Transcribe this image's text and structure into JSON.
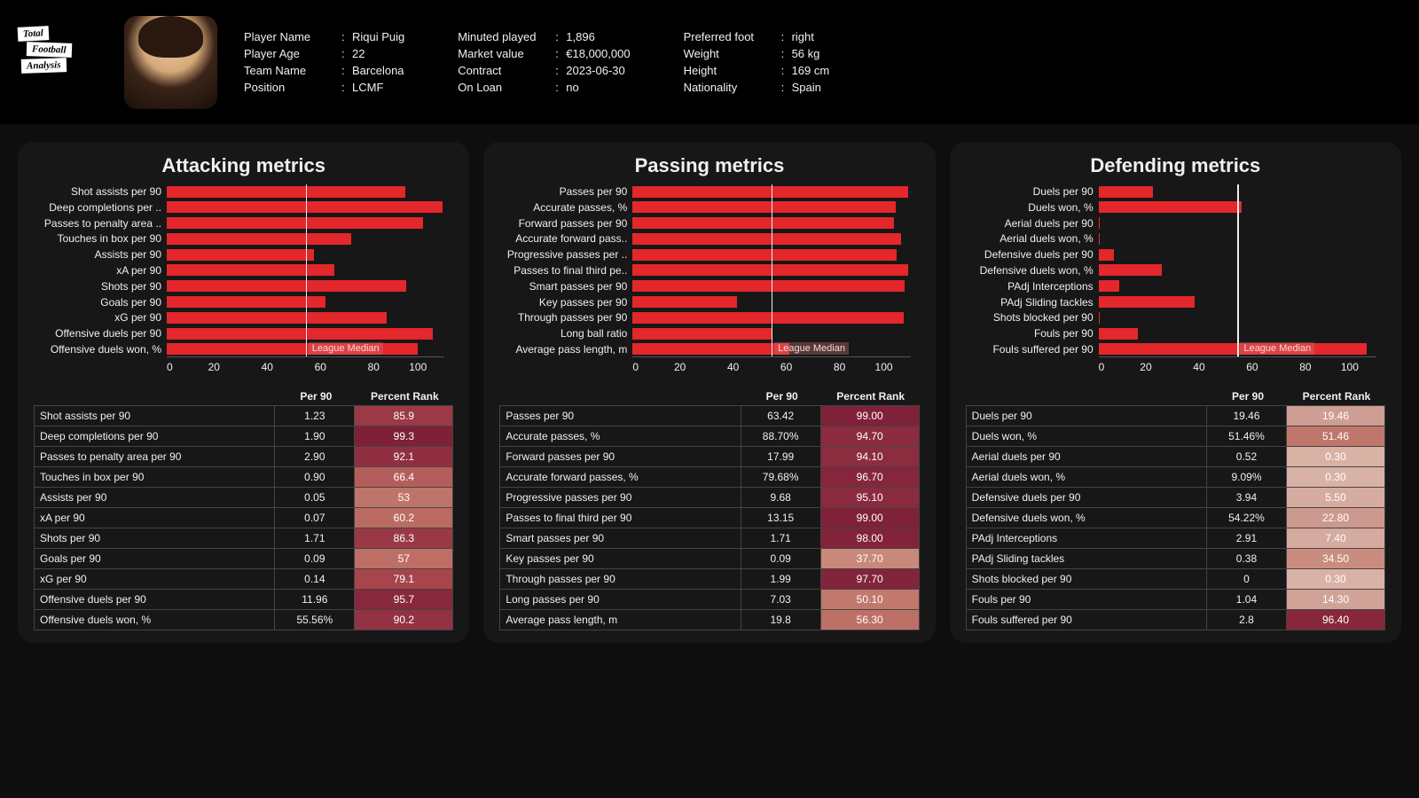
{
  "logo": {
    "w1": "Total",
    "w2": "Football",
    "w3": "Analysis"
  },
  "info": {
    "c1": [
      {
        "label": "Player Name",
        "val": "Riqui Puig"
      },
      {
        "label": "Player Age",
        "val": "22"
      },
      {
        "label": "Team Name",
        "val": "Barcelona"
      },
      {
        "label": "Position",
        "val": "LCMF"
      }
    ],
    "c2": [
      {
        "label": "Minuted played",
        "val": "1,896"
      },
      {
        "label": "Market value",
        "val": "€18,000,000"
      },
      {
        "label": "Contract",
        "val": "2023-06-30"
      },
      {
        "label": "On Loan",
        "val": "no"
      }
    ],
    "c3": [
      {
        "label": "Preferred foot",
        "val": "right"
      },
      {
        "label": "Weight",
        "val": "56 kg"
      },
      {
        "label": "Height",
        "val": "169 cm"
      },
      {
        "label": "Nationality",
        "val": "Spain"
      }
    ]
  },
  "chart_common": {
    "bar_color": "#e3272b",
    "median_line_color": "#eeeeee",
    "median_label": "League Median",
    "median_value": 50,
    "xlim": [
      0,
      100
    ],
    "xticks": [
      0,
      20,
      40,
      60,
      80,
      100
    ],
    "background": "#171717",
    "text_color": "#f0f0f0",
    "grid_border": "#444444"
  },
  "rank_color_scale": {
    "0": "#d9b2a6",
    "20": "#ce9c92",
    "40": "#c78678",
    "60": "#bb6b62",
    "80": "#a6434b",
    "95": "#8a2a3e",
    "100": "#7c1f37"
  },
  "table_headers": {
    "metric": "",
    "per90": "Per 90",
    "rank": "Percent Rank"
  },
  "panels": [
    {
      "title": "Attacking metrics",
      "median_label_left_pct": 51,
      "bars": [
        {
          "label": "Shot assists per 90",
          "val": 85.9
        },
        {
          "label": "Deep completions per ..",
          "val": 99.3
        },
        {
          "label": "Passes to penalty area ..",
          "val": 92.1
        },
        {
          "label": "Touches in box per 90",
          "val": 66.4
        },
        {
          "label": "Assists per 90",
          "val": 53
        },
        {
          "label": "xA per 90",
          "val": 60.2
        },
        {
          "label": "Shots per 90",
          "val": 86.3
        },
        {
          "label": "Goals per 90",
          "val": 57
        },
        {
          "label": "xG per 90",
          "val": 79.1
        },
        {
          "label": "Offensive duels per 90",
          "val": 95.7
        },
        {
          "label": "Offensive duels won, %",
          "val": 90.2
        }
      ],
      "rows": [
        {
          "metric": "Shot assists per 90",
          "per90": "1.23",
          "rank": "85.9"
        },
        {
          "metric": "Deep completions per 90",
          "per90": "1.90",
          "rank": "99.3"
        },
        {
          "metric": "Passes to penalty area per 90",
          "per90": "2.90",
          "rank": "92.1"
        },
        {
          "metric": "Touches in box per 90",
          "per90": "0.90",
          "rank": "66.4"
        },
        {
          "metric": "Assists per 90",
          "per90": "0.05",
          "rank": "53"
        },
        {
          "metric": "xA per 90",
          "per90": "0.07",
          "rank": "60.2"
        },
        {
          "metric": "Shots per 90",
          "per90": "1.71",
          "rank": "86.3"
        },
        {
          "metric": "Goals per 90",
          "per90": "0.09",
          "rank": "57"
        },
        {
          "metric": "xG per 90",
          "per90": "0.14",
          "rank": "79.1"
        },
        {
          "metric": "Offensive duels per 90",
          "per90": "11.96",
          "rank": "95.7"
        },
        {
          "metric": "Offensive duels won, %",
          "per90": "55.56%",
          "rank": "90.2"
        }
      ]
    },
    {
      "title": "Passing metrics",
      "median_label_left_pct": 51,
      "bars": [
        {
          "label": "Passes per 90",
          "val": 99
        },
        {
          "label": "Accurate passes, %",
          "val": 94.7
        },
        {
          "label": "Forward passes per 90",
          "val": 94.1
        },
        {
          "label": "Accurate forward pass..",
          "val": 96.7
        },
        {
          "label": "Progressive passes per ..",
          "val": 95.1
        },
        {
          "label": "Passes to final third pe..",
          "val": 99
        },
        {
          "label": "Smart passes per 90",
          "val": 98
        },
        {
          "label": "Key passes per 90",
          "val": 37.7
        },
        {
          "label": "Through passes per 90",
          "val": 97.7
        },
        {
          "label": "Long ball ratio",
          "val": 50.1
        },
        {
          "label": "Average pass length, m",
          "val": 56.3
        }
      ],
      "rows": [
        {
          "metric": "Passes per 90",
          "per90": "63.42",
          "rank": "99.00"
        },
        {
          "metric": "Accurate passes, %",
          "per90": "88.70%",
          "rank": "94.70"
        },
        {
          "metric": "Forward passes per 90",
          "per90": "17.99",
          "rank": "94.10"
        },
        {
          "metric": "Accurate forward passes, %",
          "per90": "79.68%",
          "rank": "96.70"
        },
        {
          "metric": "Progressive passes per 90",
          "per90": "9.68",
          "rank": "95.10"
        },
        {
          "metric": "Passes to final third per 90",
          "per90": "13.15",
          "rank": "99.00"
        },
        {
          "metric": "Smart passes per 90",
          "per90": "1.71",
          "rank": "98.00"
        },
        {
          "metric": "Key passes per 90",
          "per90": "0.09",
          "rank": "37.70"
        },
        {
          "metric": "Through passes per 90",
          "per90": "1.99",
          "rank": "97.70"
        },
        {
          "metric": "Long passes per 90",
          "per90": "7.03",
          "rank": "50.10"
        },
        {
          "metric": "Average pass length, m",
          "per90": "19.8",
          "rank": "56.30"
        }
      ]
    },
    {
      "title": "Defending metrics",
      "median_label_left_pct": 51,
      "bars": [
        {
          "label": "Duels per 90",
          "val": 19.46
        },
        {
          "label": "Duels won, %",
          "val": 51.46
        },
        {
          "label": "Aerial duels per 90",
          "val": 0.3
        },
        {
          "label": "Aerial duels won, %",
          "val": 0.3
        },
        {
          "label": "Defensive duels per 90",
          "val": 5.5
        },
        {
          "label": "Defensive duels won, %",
          "val": 22.8
        },
        {
          "label": "PAdj Interceptions",
          "val": 7.4
        },
        {
          "label": "PAdj Sliding tackles",
          "val": 34.5
        },
        {
          "label": "Shots blocked per 90",
          "val": 0.3
        },
        {
          "label": "Fouls per 90",
          "val": 14.3
        },
        {
          "label": "Fouls suffered per 90",
          "val": 96.4
        }
      ],
      "rows": [
        {
          "metric": "Duels per 90",
          "per90": "19.46",
          "rank": "19.46"
        },
        {
          "metric": "Duels won, %",
          "per90": "51.46%",
          "rank": "51.46"
        },
        {
          "metric": "Aerial duels per 90",
          "per90": "0.52",
          "rank": "0.30"
        },
        {
          "metric": "Aerial duels won, %",
          "per90": "9.09%",
          "rank": "0.30"
        },
        {
          "metric": "Defensive duels per 90",
          "per90": "3.94",
          "rank": "5.50"
        },
        {
          "metric": "Defensive duels won, %",
          "per90": "54.22%",
          "rank": "22.80"
        },
        {
          "metric": "PAdj Interceptions",
          "per90": "2.91",
          "rank": "7.40"
        },
        {
          "metric": "PAdj Sliding tackles",
          "per90": "0.38",
          "rank": "34.50"
        },
        {
          "metric": "Shots blocked per 90",
          "per90": "0",
          "rank": "0.30"
        },
        {
          "metric": "Fouls per 90",
          "per90": "1.04",
          "rank": "14.30"
        },
        {
          "metric": "Fouls suffered per 90",
          "per90": "2.8",
          "rank": "96.40"
        }
      ]
    }
  ]
}
